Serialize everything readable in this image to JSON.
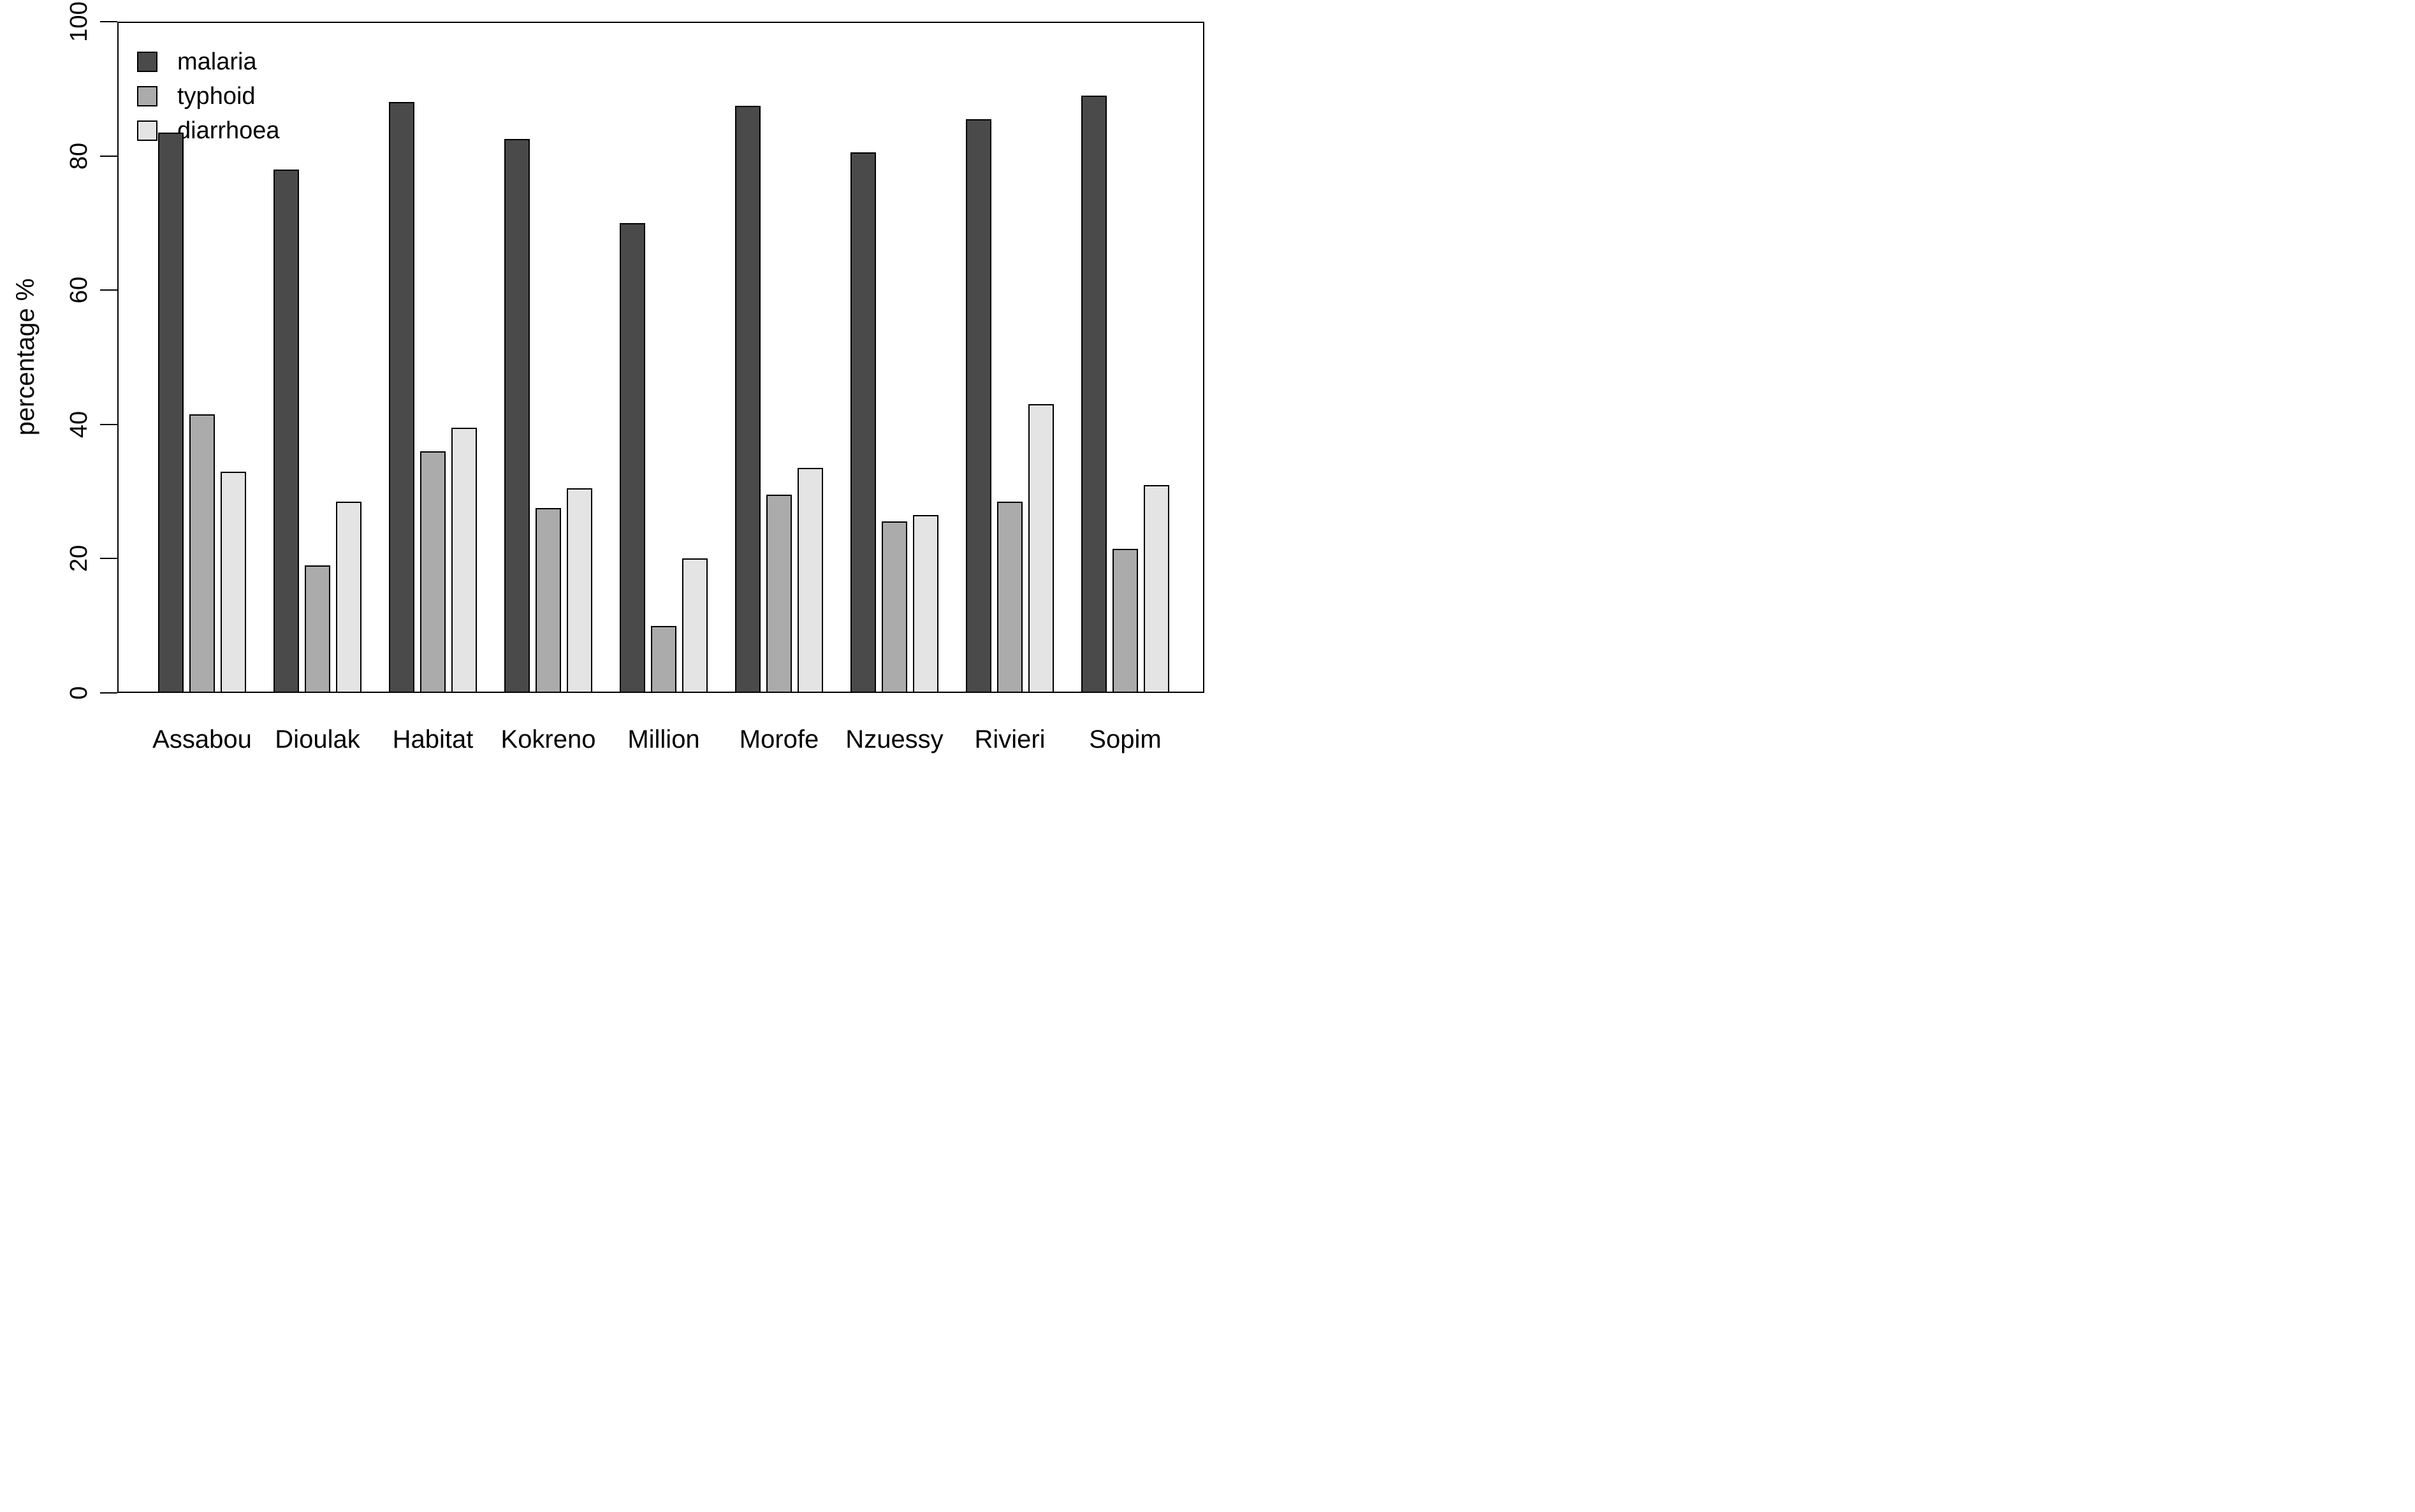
{
  "chart_data": {
    "type": "bar",
    "title": "",
    "xlabel": "",
    "ylabel": "percentage %",
    "ylim": [
      0,
      100
    ],
    "yticks": [
      0,
      20,
      40,
      60,
      80,
      100
    ],
    "grid": false,
    "legend_position": "top-left",
    "background": "#ffffff",
    "bar_border_color": "#000000",
    "axis_color": "#000000",
    "categories": [
      "Assabou",
      "Dioulak",
      "Habitat",
      "Kokreno",
      "Million",
      "Morofe",
      "Nzuessy",
      "Rivieri",
      "Sopim"
    ],
    "series": [
      {
        "name": "malaria",
        "color": "#4a4a4a",
        "values": [
          83.5,
          78.0,
          88.0,
          82.5,
          70.0,
          87.5,
          80.5,
          85.5,
          89.0
        ]
      },
      {
        "name": "typhoid",
        "color": "#ababab",
        "values": [
          41.5,
          19.0,
          36.0,
          27.5,
          10.0,
          29.5,
          25.5,
          28.5,
          21.5
        ]
      },
      {
        "name": "diarrhoea",
        "color": "#e4e4e4",
        "values": [
          33.0,
          28.5,
          39.5,
          30.5,
          20.0,
          33.5,
          26.5,
          43.0,
          31.0
        ]
      }
    ]
  }
}
